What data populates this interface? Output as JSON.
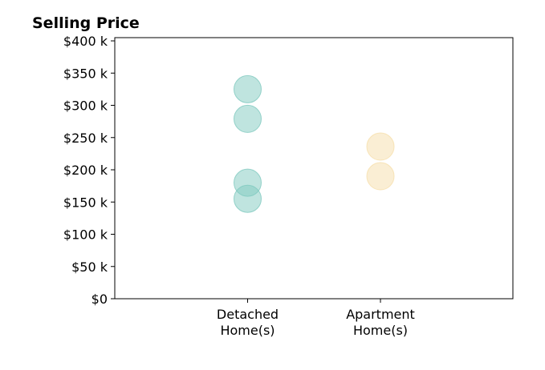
{
  "chart_data": {
    "type": "scatter",
    "title": "Selling Price",
    "xlabel": "",
    "ylabel": "",
    "categories": [
      "Detached Home(s)",
      "Apartment Home(s)"
    ],
    "category_lines": [
      [
        "Detached",
        "Home(s)"
      ],
      [
        "Apartment",
        "Home(s)"
      ]
    ],
    "ylim": [
      0,
      405000
    ],
    "yticks": [
      0,
      50000,
      100000,
      150000,
      200000,
      250000,
      300000,
      350000,
      400000
    ],
    "ytick_labels": [
      "$0",
      "$50 k",
      "$100 k",
      "$150 k",
      "$200 k",
      "$250 k",
      "$300 k",
      "$350 k",
      "$400 k"
    ],
    "grid": false,
    "series": [
      {
        "category": "Detached Home(s)",
        "values": [
          325000,
          279000,
          180000,
          155000
        ],
        "color": "#7fc9bf"
      },
      {
        "category": "Apartment Home(s)",
        "values": [
          236000,
          190000
        ],
        "color": "#f6deaa"
      }
    ]
  }
}
